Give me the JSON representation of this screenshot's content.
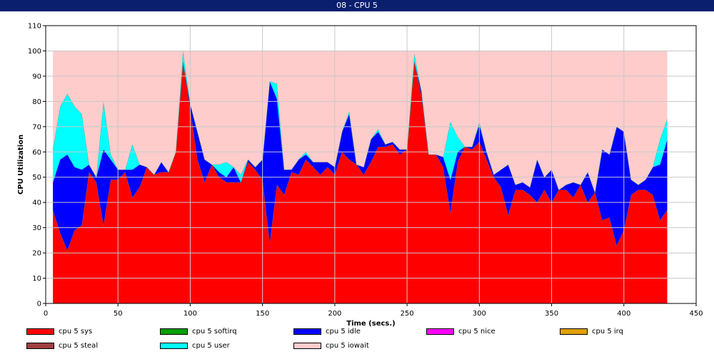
{
  "window": {
    "title": "08 - CPU 5"
  },
  "chart_data": {
    "type": "area",
    "title": "",
    "xlabel": "Time (secs.)",
    "ylabel": "CPU Utilization",
    "xlim": [
      0,
      450
    ],
    "ylim": [
      0,
      110
    ],
    "xticks": [
      0,
      50,
      100,
      150,
      200,
      250,
      300,
      350,
      400,
      450
    ],
    "yticks": [
      0,
      10,
      20,
      30,
      40,
      50,
      60,
      70,
      80,
      90,
      100,
      110
    ],
    "grid": true,
    "stacked": true,
    "x": [
      5,
      10,
      15,
      20,
      25,
      30,
      35,
      40,
      45,
      50,
      55,
      60,
      65,
      70,
      75,
      80,
      85,
      90,
      95,
      100,
      105,
      110,
      115,
      120,
      125,
      130,
      135,
      140,
      145,
      150,
      155,
      160,
      165,
      170,
      175,
      180,
      185,
      190,
      195,
      200,
      205,
      210,
      215,
      220,
      225,
      230,
      235,
      240,
      245,
      250,
      255,
      260,
      265,
      270,
      275,
      280,
      285,
      290,
      295,
      300,
      305,
      310,
      315,
      320,
      325,
      330,
      335,
      340,
      345,
      350,
      355,
      360,
      365,
      370,
      375,
      380,
      385,
      390,
      395,
      400,
      405,
      410,
      415,
      420,
      425,
      430
    ],
    "series": [
      {
        "name": "cpu 5 sys",
        "color": "#ff0000",
        "values": [
          37,
          28,
          21,
          29,
          31,
          52,
          48,
          31,
          49,
          49,
          52,
          42,
          46,
          54,
          51,
          52,
          52,
          60,
          96,
          77,
          57,
          48,
          55,
          50,
          48,
          48,
          48,
          56,
          53,
          49,
          24,
          47,
          43,
          52,
          51,
          57,
          54,
          51,
          54,
          51,
          60,
          57,
          55,
          51,
          56,
          62,
          62,
          63,
          59,
          61,
          96,
          82,
          59,
          59,
          54,
          36,
          56,
          62,
          61,
          64,
          57,
          50,
          46,
          35,
          45,
          45,
          43,
          40,
          45,
          40,
          45,
          45,
          42,
          47,
          40,
          44,
          33,
          34,
          23,
          29,
          43,
          45,
          45,
          43,
          33,
          37
        ]
      },
      {
        "name": "cpu 5 softirq",
        "color": "#00a000",
        "values": [
          0,
          0,
          0,
          0,
          0,
          0,
          0,
          0,
          0,
          0,
          0,
          0,
          0,
          0,
          0,
          0,
          0,
          0,
          0,
          0,
          0,
          0,
          0,
          0,
          0,
          0,
          0,
          0,
          0,
          0,
          0,
          0,
          0,
          0,
          0,
          0,
          0,
          0,
          0,
          0,
          0,
          0,
          0,
          0,
          0,
          0,
          0,
          0,
          0,
          0,
          0,
          0,
          0,
          0,
          0,
          0,
          0,
          0,
          0,
          0,
          0,
          0,
          0,
          0,
          0,
          0,
          0,
          0,
          0,
          0,
          0,
          0,
          0,
          0,
          0,
          0,
          0,
          0,
          0,
          0,
          0,
          0,
          0,
          0,
          0,
          0
        ]
      },
      {
        "name": "cpu 5 idle",
        "color": "#0000ff",
        "values": [
          11,
          29,
          38,
          25,
          22,
          3,
          2,
          30,
          8,
          4,
          1,
          11,
          9,
          0,
          0,
          4,
          0,
          0,
          0,
          2,
          11,
          9,
          0,
          2,
          2,
          6,
          0,
          1,
          1,
          8,
          64,
          34,
          10,
          1,
          6,
          2,
          2,
          5,
          2,
          3,
          8,
          18,
          0,
          3,
          9,
          6,
          1,
          1,
          2,
          0,
          0,
          2,
          0,
          0,
          4,
          13,
          4,
          0,
          1,
          7,
          3,
          1,
          7,
          20,
          2,
          3,
          3,
          17,
          5,
          13,
          0,
          2,
          6,
          0,
          12,
          0,
          28,
          25,
          47,
          39,
          6,
          2,
          4,
          11,
          22,
          28
        ]
      },
      {
        "name": "cpu 5 nice",
        "color": "#ff00ff",
        "values": [
          0,
          0,
          0,
          0,
          0,
          0,
          0,
          0,
          0,
          0,
          0,
          0,
          0,
          0,
          0,
          0,
          0,
          0,
          0,
          0,
          0,
          0,
          0,
          0,
          0,
          0,
          0,
          0,
          0,
          0,
          0,
          0,
          0,
          0,
          0,
          0,
          0,
          0,
          0,
          0,
          0,
          0,
          0,
          0,
          0,
          0,
          0,
          0,
          0,
          0,
          0,
          0,
          0,
          0,
          0,
          0,
          0,
          0,
          0,
          0,
          0,
          0,
          0,
          0,
          0,
          0,
          0,
          0,
          0,
          0,
          0,
          0,
          0,
          0,
          0,
          0,
          0,
          0,
          0,
          0,
          0,
          0,
          0,
          0,
          0,
          0
        ]
      },
      {
        "name": "cpu 5 irq",
        "color": "#e0a000",
        "values": [
          0,
          0,
          0,
          0,
          0,
          0,
          0,
          0,
          0,
          0,
          0,
          0,
          0,
          0,
          0,
          0,
          0,
          0,
          0,
          0,
          0,
          0,
          0,
          0,
          0,
          0,
          0,
          0,
          0,
          0,
          0,
          0,
          0,
          0,
          0,
          0,
          0,
          0,
          0,
          0,
          0,
          0,
          0,
          0,
          0,
          0,
          0,
          0,
          0,
          0,
          0,
          0,
          0,
          0,
          0,
          0,
          0,
          0,
          0,
          0,
          0,
          0,
          0,
          0,
          0,
          0,
          0,
          0,
          0,
          0,
          0,
          0,
          0,
          0,
          0,
          0,
          0,
          0,
          0,
          0,
          0,
          0,
          0,
          0,
          0,
          0
        ]
      },
      {
        "name": "cpu 5 steal",
        "color": "#a04040",
        "values": [
          0,
          0,
          0,
          0,
          0,
          0,
          0,
          0,
          0,
          0,
          0,
          0,
          0,
          0,
          0,
          0,
          0,
          0,
          0,
          0,
          0,
          0,
          0,
          0,
          0,
          0,
          0,
          0,
          0,
          0,
          0,
          0,
          0,
          0,
          0,
          0,
          0,
          0,
          0,
          0,
          0,
          0,
          0,
          0,
          0,
          0,
          0,
          0,
          0,
          0,
          0,
          0,
          0,
          0,
          0,
          0,
          0,
          0,
          0,
          0,
          0,
          0,
          0,
          0,
          0,
          0,
          0,
          0,
          0,
          0,
          0,
          0,
          0,
          0,
          0,
          0,
          0,
          0,
          0,
          0,
          0,
          0,
          0,
          0,
          0,
          0
        ]
      },
      {
        "name": "cpu 5 user",
        "color": "#00ffff",
        "values": [
          13,
          21,
          24,
          24,
          22,
          0,
          0,
          19,
          2,
          0,
          0,
          10,
          0,
          0,
          0,
          0,
          0,
          0,
          4,
          0,
          0,
          0,
          0,
          3,
          6,
          0,
          3,
          0,
          0,
          0,
          0,
          6,
          0,
          0,
          0,
          1,
          0,
          0,
          0,
          0,
          0,
          1,
          0,
          0,
          0,
          1,
          0,
          0,
          0,
          0,
          3,
          0,
          0,
          0,
          0,
          23,
          6,
          0,
          0,
          1,
          0,
          0,
          0,
          0,
          0,
          0,
          0,
          0,
          0,
          0,
          0,
          0,
          0,
          0,
          0,
          0,
          0,
          0,
          0,
          0,
          0,
          0,
          0,
          0,
          10,
          8
        ]
      },
      {
        "name": "cpu 5 iowait",
        "color": "#ffcccc",
        "values": [
          39,
          22,
          17,
          22,
          25,
          45,
          50,
          20,
          41,
          47,
          47,
          37,
          45,
          46,
          49,
          44,
          48,
          40,
          0,
          21,
          32,
          43,
          45,
          45,
          44,
          46,
          49,
          43,
          46,
          43,
          12,
          13,
          47,
          47,
          43,
          40,
          44,
          44,
          44,
          46,
          32,
          24,
          45,
          46,
          35,
          31,
          37,
          36,
          39,
          39,
          1,
          16,
          41,
          41,
          42,
          28,
          34,
          38,
          38,
          28,
          40,
          49,
          47,
          45,
          53,
          52,
          54,
          43,
          50,
          47,
          55,
          53,
          52,
          53,
          48,
          56,
          39,
          41,
          30,
          32,
          51,
          53,
          51,
          46,
          35,
          27
        ]
      }
    ]
  }
}
